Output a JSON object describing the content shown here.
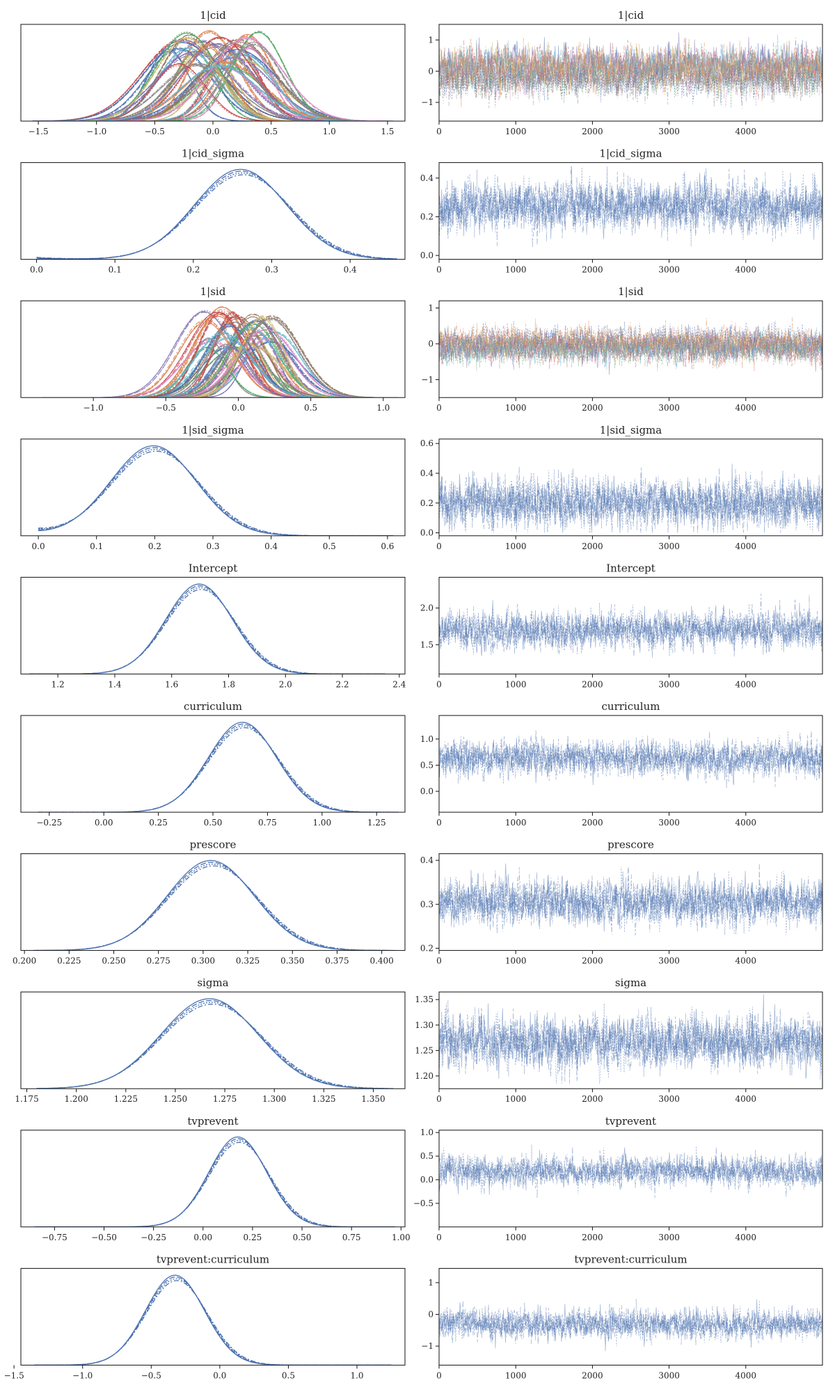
{
  "figure": {
    "trace_color": "#4c72b0",
    "multi_palette": [
      "#4c72b0",
      "#dd8452",
      "#55a868",
      "#c44e52",
      "#8172b3",
      "#937860",
      "#da8bc3",
      "#8c8c8c",
      "#ccb974",
      "#64b5cd"
    ]
  },
  "chart_data": [
    {
      "type": "line",
      "title": "1|cid",
      "kind": "density",
      "multi": true,
      "n_lines": 40,
      "line_center_range": [
        -0.4,
        0.4
      ],
      "xlim": [
        -1.65,
        1.65
      ],
      "ylim": [
        0,
        1.0
      ],
      "xticks": [
        -1.5,
        -1.0,
        -0.5,
        0.0,
        0.5,
        1.0,
        1.5
      ],
      "xtick_labels": [
        "−1.5",
        "−1.0",
        "−0.5",
        "0.0",
        "0.5",
        "1.0",
        "1.5"
      ],
      "yticks": [],
      "ytick_labels": [],
      "center": 0.0,
      "spread": 0.33,
      "support": [
        -1.55,
        1.55
      ]
    },
    {
      "type": "line",
      "title": "1|cid",
      "kind": "trace",
      "multi": true,
      "n_draws": 5000,
      "xlim": [
        0,
        5000
      ],
      "ylim": [
        -1.6,
        1.5
      ],
      "xticks": [
        0,
        1000,
        2000,
        3000,
        4000
      ],
      "xtick_labels": [
        "0",
        "1000",
        "2000",
        "3000",
        "4000"
      ],
      "yticks": [
        -1,
        0,
        1
      ],
      "ytick_labels": [
        "−1",
        "0",
        "1"
      ],
      "center": 0.0,
      "spread": 0.55
    },
    {
      "type": "line",
      "title": "1|cid_sigma",
      "kind": "density",
      "multi": false,
      "xlim": [
        -0.02,
        0.47
      ],
      "ylim": [
        0,
        1.0
      ],
      "xticks": [
        0.0,
        0.1,
        0.2,
        0.3,
        0.4
      ],
      "xtick_labels": [
        "0.0",
        "0.1",
        "0.2",
        "0.3",
        "0.4"
      ],
      "yticks": [],
      "ytick_labels": [],
      "center": 0.262,
      "spread": 0.06,
      "support": [
        0.0,
        0.46
      ],
      "left_tail": 0.04
    },
    {
      "type": "line",
      "title": "1|cid_sigma",
      "kind": "trace",
      "multi": false,
      "n_draws": 5000,
      "xlim": [
        0,
        5000
      ],
      "ylim": [
        -0.02,
        0.48
      ],
      "xticks": [
        0,
        1000,
        2000,
        3000,
        4000
      ],
      "xtick_labels": [
        "0",
        "1000",
        "2000",
        "3000",
        "4000"
      ],
      "yticks": [
        0.0,
        0.2,
        0.4
      ],
      "ytick_labels": [
        "0.0",
        "0.2",
        "0.4"
      ],
      "center": 0.255,
      "spread": 0.065,
      "clip": [
        0.0,
        0.46
      ]
    },
    {
      "type": "line",
      "title": "1|sid",
      "kind": "density",
      "multi": true,
      "n_lines": 40,
      "line_center_range": [
        -0.25,
        0.25
      ],
      "xlim": [
        -1.5,
        1.15
      ],
      "ylim": [
        0,
        1.0
      ],
      "xticks": [
        -1.0,
        -0.5,
        0.0,
        0.5,
        1.0
      ],
      "xtick_labels": [
        "−1.0",
        "−0.5",
        "0.0",
        "0.5",
        "1.0"
      ],
      "yticks": [],
      "ytick_labels": [],
      "center": 0.0,
      "spread": 0.2,
      "support": [
        -1.35,
        1.1
      ]
    },
    {
      "type": "line",
      "title": "1|sid",
      "kind": "trace",
      "multi": true,
      "n_draws": 5000,
      "xlim": [
        0,
        5000
      ],
      "ylim": [
        -1.5,
        1.2
      ],
      "xticks": [
        0,
        1000,
        2000,
        3000,
        4000
      ],
      "xtick_labels": [
        "0",
        "1000",
        "2000",
        "3000",
        "4000"
      ],
      "yticks": [
        -1,
        0,
        1
      ],
      "ytick_labels": [
        "−1",
        "0",
        "1"
      ],
      "center": 0.0,
      "spread": 0.35
    },
    {
      "type": "line",
      "title": "1|sid_sigma",
      "kind": "density",
      "multi": false,
      "xlim": [
        -0.03,
        0.63
      ],
      "ylim": [
        0,
        1.0
      ],
      "xticks": [
        0.0,
        0.1,
        0.2,
        0.3,
        0.4,
        0.5,
        0.6
      ],
      "xtick_labels": [
        "0.0",
        "0.1",
        "0.2",
        "0.3",
        "0.4",
        "0.5",
        "0.6"
      ],
      "yticks": [],
      "ytick_labels": [],
      "center": 0.2,
      "spread": 0.075,
      "support": [
        0.0,
        0.61
      ],
      "left_tail": 0.1
    },
    {
      "type": "line",
      "title": "1|sid_sigma",
      "kind": "trace",
      "multi": false,
      "n_draws": 5000,
      "xlim": [
        0,
        5000
      ],
      "ylim": [
        -0.02,
        0.63
      ],
      "xticks": [
        0,
        1000,
        2000,
        3000,
        4000
      ],
      "xtick_labels": [
        "0",
        "1000",
        "2000",
        "3000",
        "4000"
      ],
      "yticks": [
        0.0,
        0.2,
        0.4,
        0.6
      ],
      "ytick_labels": [
        "0.0",
        "0.2",
        "0.4",
        "0.6"
      ],
      "center": 0.2,
      "spread": 0.085,
      "clip": [
        0.0,
        0.61
      ]
    },
    {
      "type": "line",
      "title": "Intercept",
      "kind": "density",
      "multi": false,
      "xlim": [
        1.07,
        2.42
      ],
      "ylim": [
        0,
        1.0
      ],
      "xticks": [
        1.2,
        1.4,
        1.6,
        1.8,
        2.0,
        2.2,
        2.4
      ],
      "xtick_labels": [
        "1.2",
        "1.4",
        "1.6",
        "1.8",
        "2.0",
        "2.2",
        "2.4"
      ],
      "yticks": [],
      "ytick_labels": [],
      "center": 1.7,
      "spread": 0.12,
      "support": [
        1.1,
        2.35
      ]
    },
    {
      "type": "line",
      "title": "Intercept",
      "kind": "trace",
      "multi": false,
      "n_draws": 5000,
      "xlim": [
        0,
        5000
      ],
      "ylim": [
        1.1,
        2.42
      ],
      "xticks": [
        0,
        1000,
        2000,
        3000,
        4000
      ],
      "xtick_labels": [
        "0",
        "1000",
        "2000",
        "3000",
        "4000"
      ],
      "yticks": [
        1.5,
        2.0
      ],
      "ytick_labels": [
        "1.5",
        "2.0"
      ],
      "center": 1.7,
      "spread": 0.13,
      "clip": [
        1.15,
        2.35
      ]
    },
    {
      "type": "line",
      "title": "curriculum",
      "kind": "density",
      "multi": false,
      "xlim": [
        -0.38,
        1.38
      ],
      "ylim": [
        0,
        1.0
      ],
      "xticks": [
        -0.25,
        0.0,
        0.25,
        0.5,
        0.75,
        1.0,
        1.25
      ],
      "xtick_labels": [
        "−0.25",
        "0.00",
        "0.25",
        "0.50",
        "0.75",
        "1.00",
        "1.25"
      ],
      "yticks": [],
      "ytick_labels": [],
      "center": 0.64,
      "spread": 0.16,
      "support": [
        -0.3,
        1.35
      ]
    },
    {
      "type": "line",
      "title": "curriculum",
      "kind": "trace",
      "multi": false,
      "n_draws": 5000,
      "xlim": [
        0,
        5000
      ],
      "ylim": [
        -0.4,
        1.45
      ],
      "xticks": [
        0,
        1000,
        2000,
        3000,
        4000
      ],
      "xtick_labels": [
        "0",
        "1000",
        "2000",
        "3000",
        "4000"
      ],
      "yticks": [
        0.0,
        0.5,
        1.0
      ],
      "ytick_labels": [
        "0.0",
        "0.5",
        "1.0"
      ],
      "center": 0.63,
      "spread": 0.17,
      "clip": [
        -0.3,
        1.35
      ]
    },
    {
      "type": "line",
      "title": "prescore",
      "kind": "density",
      "multi": false,
      "xlim": [
        0.198,
        0.413
      ],
      "ylim": [
        0,
        1.0
      ],
      "xticks": [
        0.2,
        0.225,
        0.25,
        0.275,
        0.3,
        0.325,
        0.35,
        0.375,
        0.4
      ],
      "xtick_labels": [
        "0.200",
        "0.225",
        "0.250",
        "0.275",
        "0.300",
        "0.325",
        "0.350",
        "0.375",
        "0.400"
      ],
      "yticks": [],
      "ytick_labels": [],
      "center": 0.305,
      "spread": 0.025,
      "support": [
        0.205,
        0.408
      ]
    },
    {
      "type": "line",
      "title": "prescore",
      "kind": "trace",
      "multi": false,
      "n_draws": 5000,
      "xlim": [
        0,
        5000
      ],
      "ylim": [
        0.195,
        0.415
      ],
      "xticks": [
        0,
        1000,
        2000,
        3000,
        4000
      ],
      "xtick_labels": [
        "0",
        "1000",
        "2000",
        "3000",
        "4000"
      ],
      "yticks": [
        0.2,
        0.3,
        0.4
      ],
      "ytick_labels": [
        "0.2",
        "0.3",
        "0.4"
      ],
      "center": 0.304,
      "spread": 0.026,
      "clip": [
        0.205,
        0.408
      ]
    },
    {
      "type": "line",
      "title": "sigma",
      "kind": "density",
      "multi": false,
      "xlim": [
        1.172,
        1.366
      ],
      "ylim": [
        0,
        1.0
      ],
      "xticks": [
        1.175,
        1.2,
        1.225,
        1.25,
        1.275,
        1.3,
        1.325,
        1.35
      ],
      "xtick_labels": [
        "1.175",
        "1.200",
        "1.225",
        "1.250",
        "1.275",
        "1.300",
        "1.325",
        "1.350"
      ],
      "yticks": [],
      "ytick_labels": [],
      "center": 1.268,
      "spread": 0.025,
      "support": [
        1.18,
        1.36
      ]
    },
    {
      "type": "line",
      "title": "sigma",
      "kind": "trace",
      "multi": false,
      "n_draws": 5000,
      "xlim": [
        0,
        5000
      ],
      "ylim": [
        1.175,
        1.365
      ],
      "xticks": [
        0,
        1000,
        2000,
        3000,
        4000
      ],
      "xtick_labels": [
        "0",
        "1000",
        "2000",
        "3000",
        "4000"
      ],
      "yticks": [
        1.2,
        1.25,
        1.3,
        1.35
      ],
      "ytick_labels": [
        "1.20",
        "1.25",
        "1.30",
        "1.35"
      ],
      "center": 1.267,
      "spread": 0.026,
      "clip": [
        1.185,
        1.36
      ]
    },
    {
      "type": "line",
      "title": "tvprevent",
      "kind": "density",
      "multi": false,
      "xlim": [
        -0.92,
        1.02
      ],
      "ylim": [
        0,
        1.0
      ],
      "xticks": [
        -0.75,
        -0.5,
        -0.25,
        0.0,
        0.25,
        0.5,
        0.75,
        1.0
      ],
      "xtick_labels": [
        "−0.75",
        "−0.50",
        "−0.25",
        "0.00",
        "0.25",
        "0.50",
        "0.75",
        "1.00"
      ],
      "yticks": [],
      "ytick_labels": [],
      "center": 0.18,
      "spread": 0.15,
      "support": [
        -0.85,
        0.97
      ]
    },
    {
      "type": "line",
      "title": "tvprevent",
      "kind": "trace",
      "multi": false,
      "n_draws": 5000,
      "xlim": [
        0,
        5000
      ],
      "ylim": [
        -1.0,
        1.05
      ],
      "xticks": [
        0,
        1000,
        2000,
        3000,
        4000
      ],
      "xtick_labels": [
        "0",
        "1000",
        "2000",
        "3000",
        "4000"
      ],
      "yticks": [
        -0.5,
        0.0,
        0.5,
        1.0
      ],
      "ytick_labels": [
        "−0.5",
        "0.0",
        "0.5",
        "1.0"
      ],
      "center": 0.18,
      "spread": 0.16,
      "clip": [
        -0.9,
        1.0
      ]
    },
    {
      "type": "line",
      "title": "tvprevent:curriculum",
      "kind": "density",
      "multi": false,
      "xlim": [
        -1.45,
        1.35
      ],
      "ylim": [
        0,
        1.0
      ],
      "xticks": [
        -1.5,
        -1.0,
        -0.5,
        0.0,
        0.5,
        1.0
      ],
      "xtick_labels": [
        "−1.5",
        "−1.0",
        "−0.5",
        "0.0",
        "0.5",
        "1.0"
      ],
      "yticks": [],
      "ytick_labels": [],
      "center": -0.32,
      "spread": 0.22,
      "support": [
        -1.35,
        1.25
      ]
    },
    {
      "type": "line",
      "title": "tvprevent:curriculum",
      "kind": "trace",
      "multi": false,
      "n_draws": 5000,
      "xlim": [
        0,
        5000
      ],
      "ylim": [
        -1.6,
        1.45
      ],
      "xticks": [
        0,
        1000,
        2000,
        3000,
        4000
      ],
      "xtick_labels": [
        "0",
        "1000",
        "2000",
        "3000",
        "4000"
      ],
      "yticks": [
        -1,
        0,
        1
      ],
      "ytick_labels": [
        "−1",
        "0",
        "1"
      ],
      "center": -0.32,
      "spread": 0.23,
      "clip": [
        -1.5,
        1.3
      ]
    }
  ]
}
